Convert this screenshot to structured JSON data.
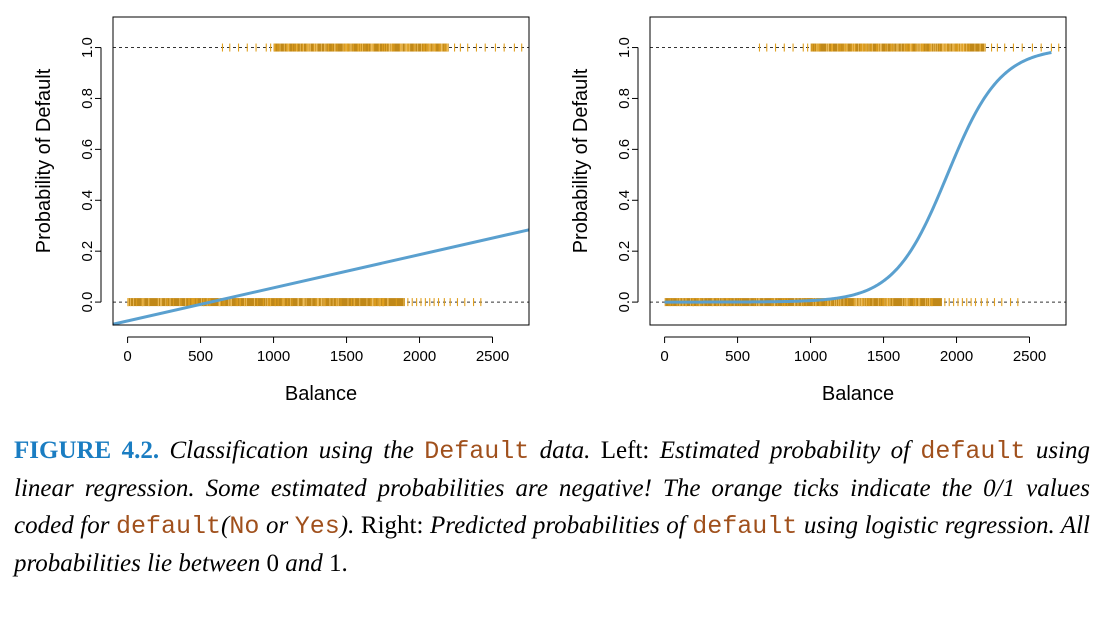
{
  "chart_data": [
    {
      "type": "line",
      "panel": "left",
      "title": "",
      "xlabel": "Balance",
      "ylabel": "Probability of Default",
      "xlim": [
        -100,
        2750
      ],
      "ylim": [
        -0.09,
        1.12
      ],
      "xticks": [
        0,
        500,
        1000,
        1500,
        2000,
        2500
      ],
      "xtick_labels": [
        "0",
        "500",
        "1000",
        "1500",
        "2000",
        "2500"
      ],
      "yticks": [
        0.0,
        0.2,
        0.4,
        0.6,
        0.8,
        1.0
      ],
      "ytick_labels": [
        "0.0",
        "0.2",
        "0.4",
        "0.6",
        "0.8",
        "1.0"
      ],
      "reference_lines": [
        0,
        1
      ],
      "fitted_line": {
        "x": [
          -100,
          2750
        ],
        "y": [
          -0.087,
          0.284
        ]
      },
      "ticks_at_0": {
        "dense_range": [
          0,
          1900
        ],
        "sparse": [
          1920,
          1950,
          1980,
          2010,
          2040,
          2070,
          2100,
          2130,
          2170,
          2210,
          2260,
          2310,
          2370,
          2420
        ]
      },
      "ticks_at_1": {
        "dense_range": [
          1000,
          2200
        ],
        "sparse": [
          650,
          700,
          760,
          820,
          880,
          950,
          980,
          2240,
          2280,
          2330,
          2390,
          2450,
          2520,
          2580,
          2650,
          2700
        ]
      },
      "colors": {
        "fit": "#5aa0cf",
        "ticks": "#e0a020",
        "ticks_dark": "#c08818",
        "reference": "#333333"
      }
    },
    {
      "type": "line",
      "panel": "right",
      "title": "",
      "xlabel": "Balance",
      "ylabel": "Probability of Default",
      "xlim": [
        -100,
        2750
      ],
      "ylim": [
        -0.09,
        1.12
      ],
      "xticks": [
        0,
        500,
        1000,
        1500,
        2000,
        2500
      ],
      "xtick_labels": [
        "0",
        "500",
        "1000",
        "1500",
        "2000",
        "2500"
      ],
      "yticks": [
        0.0,
        0.2,
        0.4,
        0.6,
        0.8,
        1.0
      ],
      "ytick_labels": [
        "0.0",
        "0.2",
        "0.4",
        "0.6",
        "0.8",
        "1.0"
      ],
      "reference_lines": [
        0,
        1
      ],
      "logistic_curve": {
        "intercept": -10.6513,
        "slope": 0.005499,
        "x_range": [
          0,
          2650
        ]
      },
      "ticks_at_0": {
        "dense_range": [
          0,
          1900
        ],
        "sparse": [
          1920,
          1950,
          1980,
          2010,
          2040,
          2070,
          2100,
          2130,
          2170,
          2210,
          2260,
          2310,
          2370,
          2420
        ]
      },
      "ticks_at_1": {
        "dense_range": [
          1000,
          2200
        ],
        "sparse": [
          650,
          700,
          760,
          820,
          880,
          950,
          980,
          2240,
          2280,
          2330,
          2390,
          2450,
          2520,
          2580,
          2650,
          2700
        ]
      },
      "colors": {
        "fit": "#5aa0cf",
        "ticks": "#e0a020",
        "ticks_dark": "#c08818",
        "reference": "#333333"
      }
    }
  ],
  "caption": {
    "figure_number": "FIGURE 4.2.",
    "parts": [
      {
        "style": "it",
        "text": " Classification using the "
      },
      {
        "style": "code",
        "text": "Default"
      },
      {
        "style": "it",
        "text": " data."
      },
      {
        "style": "rm",
        "text": " Left: "
      },
      {
        "style": "it",
        "text": "Estimated probability of "
      },
      {
        "style": "code",
        "text": "default"
      },
      {
        "style": "it",
        "text": " using linear regression. Some estimated probabilities are negative! The orange ticks indicate the 0/1 values coded for "
      },
      {
        "style": "code",
        "text": "default"
      },
      {
        "style": "it",
        "text": "("
      },
      {
        "style": "code",
        "text": "No"
      },
      {
        "style": "it",
        "text": " or "
      },
      {
        "style": "code",
        "text": "Yes"
      },
      {
        "style": "it",
        "text": ")."
      },
      {
        "style": "rm",
        "text": " Right: "
      },
      {
        "style": "it",
        "text": "Predicted probabilities of "
      },
      {
        "style": "code",
        "text": "default"
      },
      {
        "style": "it",
        "text": " using logistic regression. All probabilities lie between "
      },
      {
        "style": "rm",
        "text": "0"
      },
      {
        "style": "it",
        "text": " and "
      },
      {
        "style": "rm",
        "text": "1."
      }
    ]
  }
}
